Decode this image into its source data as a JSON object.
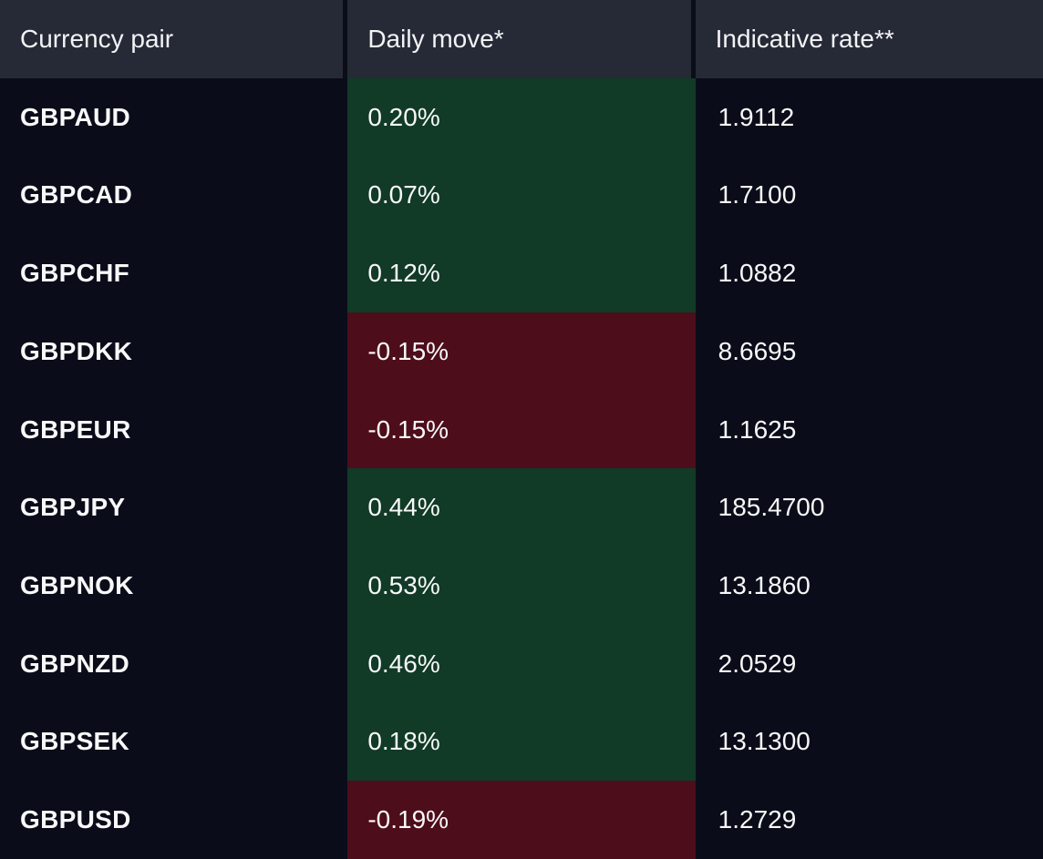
{
  "table": {
    "columns": [
      {
        "id": "pair",
        "label": "Currency pair"
      },
      {
        "id": "move",
        "label": "Daily move*"
      },
      {
        "id": "rate",
        "label": "Indicative rate**"
      }
    ],
    "rows": [
      {
        "pair": "GBPAUD",
        "move": "0.20%",
        "rate": "1.9112",
        "direction": "up"
      },
      {
        "pair": "GBPCAD",
        "move": "0.07%",
        "rate": "1.7100",
        "direction": "up"
      },
      {
        "pair": "GBPCHF",
        "move": "0.12%",
        "rate": "1.0882",
        "direction": "up"
      },
      {
        "pair": "GBPDKK",
        "move": "-0.15%",
        "rate": "8.6695",
        "direction": "down"
      },
      {
        "pair": "GBPEUR",
        "move": "-0.15%",
        "rate": "1.1625",
        "direction": "down"
      },
      {
        "pair": "GBPJPY",
        "move": "0.44%",
        "rate": "185.4700",
        "direction": "up"
      },
      {
        "pair": "GBPNOK",
        "move": "0.53%",
        "rate": "13.1860",
        "direction": "up"
      },
      {
        "pair": "GBPNZD",
        "move": "0.46%",
        "rate": "2.0529",
        "direction": "up"
      },
      {
        "pair": "GBPSEK",
        "move": "0.18%",
        "rate": "13.1300",
        "direction": "up"
      },
      {
        "pair": "GBPUSD",
        "move": "-0.19%",
        "rate": "1.2729",
        "direction": "down"
      }
    ]
  },
  "colors": {
    "body_background": "#0a0d19",
    "header_background": "#262a36",
    "positive_move_background": "#113a27",
    "negative_move_background": "#4e0d1a",
    "header_separator": "#0b0d17",
    "text": "#f7f8f8"
  }
}
